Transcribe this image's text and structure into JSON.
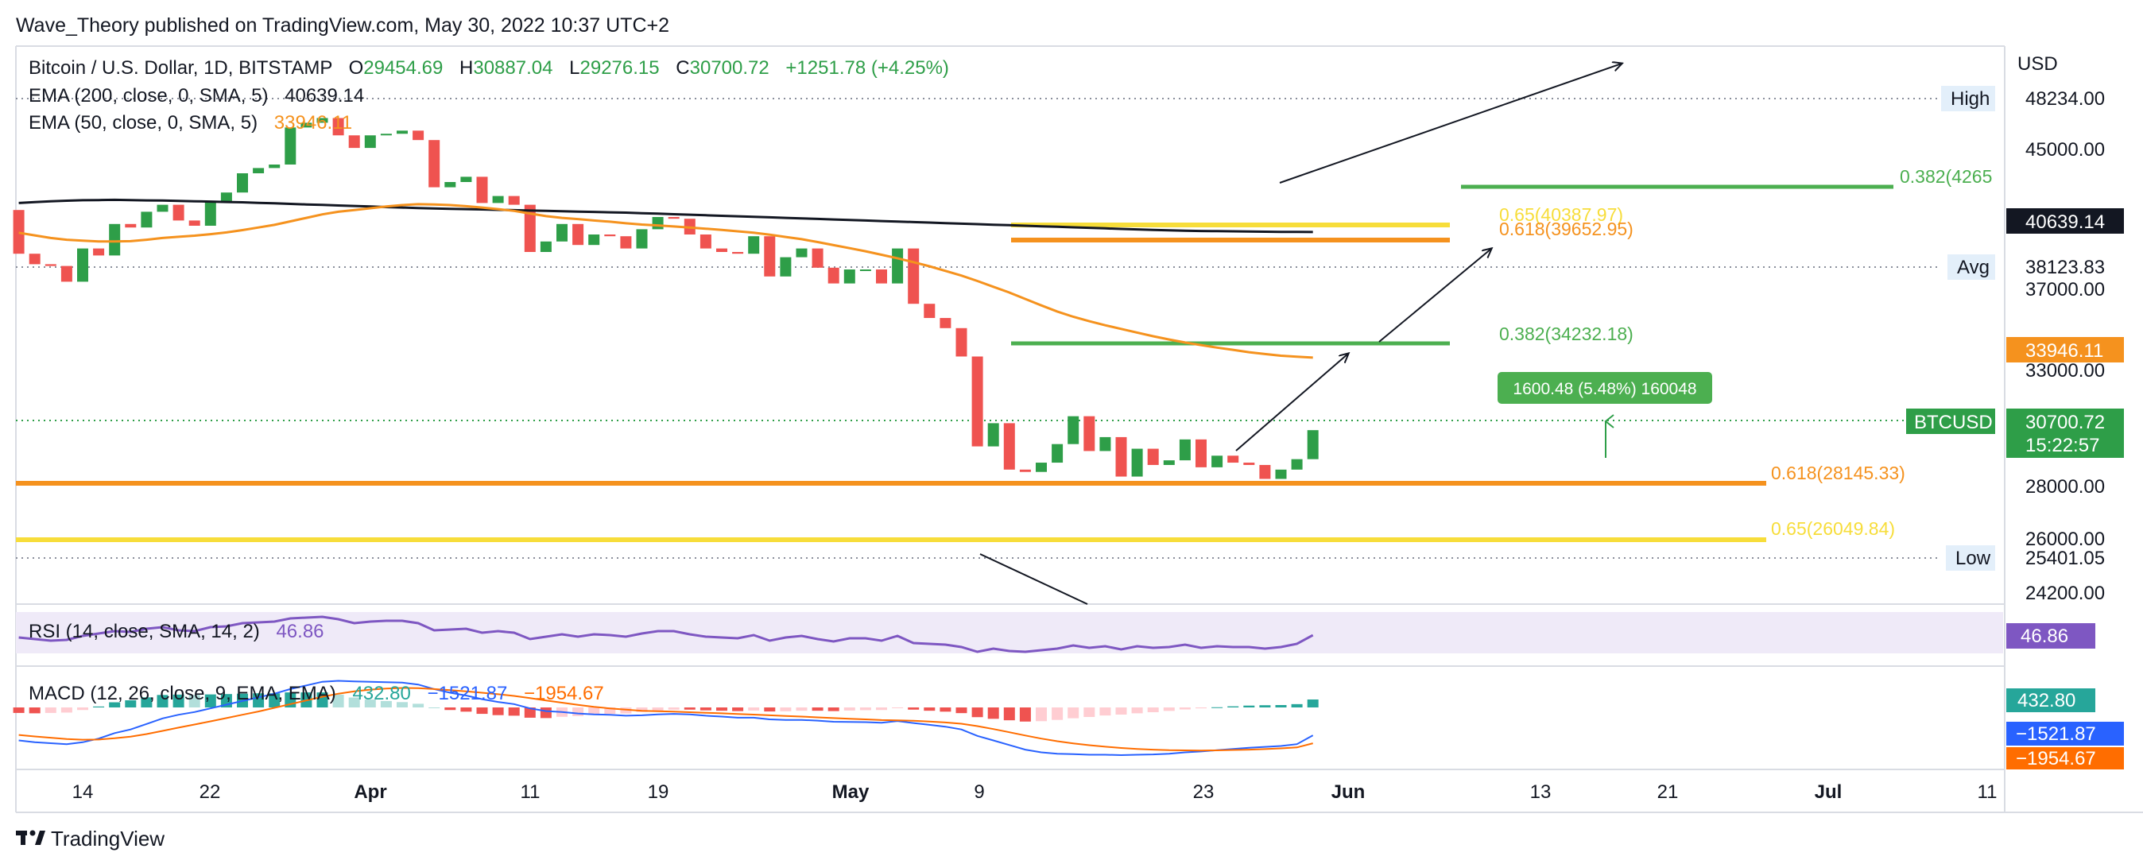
{
  "header": {
    "published": "Wave_Theory published on TradingView.com, May 30, 2022 10:37 UTC+2"
  },
  "footer": {
    "brand": "TradingView"
  },
  "legend": {
    "symbol": "Bitcoin / U.S. Dollar, 1D, BITSTAMP",
    "o_label": "O",
    "o_value": "29454.69",
    "h_label": "H",
    "h_value": "30887.04",
    "l_label": "L",
    "l_value": "29276.15",
    "c_label": "C",
    "c_value": "30700.72",
    "change": "+1251.78 (+4.25%)",
    "ema200_label": "EMA (200, close, 0, SMA, 5)",
    "ema200_value": "40639.14",
    "ema50_label": "EMA (50, close, 0, SMA, 5)",
    "ema50_value": "33946.11",
    "rsi_label": "RSI (14, close, SMA, 14, 2)",
    "rsi_value": "46.86",
    "macd_label": "MACD (12, 26, close, 9, EMA, EMA)",
    "macd_value1": "432.80",
    "macd_value2": "−1521.87",
    "macd_value3": "−1954.67"
  },
  "price_axis": {
    "currency": "USD",
    "ticks": [
      "45000.00",
      "37000.00",
      "33000.00",
      "28000.00",
      "26000.00",
      "24200.00"
    ],
    "high_label": "High",
    "high_value": "48234.00",
    "avg_label": "Avg",
    "avg_value": "38123.83",
    "low_label": "Low",
    "low_value": "25401.05",
    "ema200_badge": "40639.14",
    "ema50_badge": "33946.11",
    "symbol_badge": "BTCUSD",
    "price_badge": "30700.72",
    "countdown_badge": "15:22:57",
    "rsi_badge": "46.86",
    "macd_badge1": "432.80",
    "macd_badge2": "−1521.87",
    "macd_badge3": "−1954.67"
  },
  "time_axis": {
    "labels": [
      "14",
      "22",
      "Apr",
      "11",
      "19",
      "May",
      "9",
      "23",
      "Jun",
      "13",
      "21",
      "Jul",
      "11"
    ]
  },
  "fib_levels": [
    {
      "label": "0.382(4265",
      "color": "#4caf50"
    },
    {
      "label": "0.65(40387.97)",
      "color": "#f7dd3a"
    },
    {
      "label": "0.618(39652.95)",
      "color": "#f5921e"
    },
    {
      "label": "0.382(34232.18)",
      "color": "#4caf50"
    },
    {
      "label": "0.618(28145.33)",
      "color": "#f5921e"
    },
    {
      "label": "0.65(26049.84)",
      "color": "#f7dd3a"
    }
  ],
  "measure_box": {
    "text": "1600.48 (5.48%) 160048"
  },
  "colors": {
    "up": "#26a69a",
    "up_candle": "#2e9e48",
    "down": "#ef5350",
    "ema200": "#131722",
    "ema50": "#f5921e",
    "rsi": "#7e57c2",
    "macd": "#2962ff",
    "signal": "#ff6d00",
    "axis_green": "#2e9e48"
  },
  "chart_data": {
    "type": "candlestick",
    "symbol": "Bitcoin / U.S. Dollar, 1D, BITSTAMP",
    "x": [
      "2022-03-10",
      "2022-03-11",
      "2022-03-12",
      "2022-03-13",
      "2022-03-14",
      "2022-03-15",
      "2022-03-16",
      "2022-03-17",
      "2022-03-18",
      "2022-03-19",
      "2022-03-20",
      "2022-03-21",
      "2022-03-22",
      "2022-03-23",
      "2022-03-24",
      "2022-03-25",
      "2022-03-26",
      "2022-03-27",
      "2022-03-28",
      "2022-03-29",
      "2022-03-30",
      "2022-03-31",
      "2022-04-01",
      "2022-04-02",
      "2022-04-03",
      "2022-04-04",
      "2022-04-05",
      "2022-04-06",
      "2022-04-07",
      "2022-04-08",
      "2022-04-09",
      "2022-04-10",
      "2022-04-11",
      "2022-04-12",
      "2022-04-13",
      "2022-04-14",
      "2022-04-15",
      "2022-04-16",
      "2022-04-17",
      "2022-04-18",
      "2022-04-19",
      "2022-04-20",
      "2022-04-21",
      "2022-04-22",
      "2022-04-23",
      "2022-04-24",
      "2022-04-25",
      "2022-04-26",
      "2022-04-27",
      "2022-04-28",
      "2022-04-29",
      "2022-04-30",
      "2022-05-01",
      "2022-05-02",
      "2022-05-03",
      "2022-05-04",
      "2022-05-05",
      "2022-05-06",
      "2022-05-07",
      "2022-05-08",
      "2022-05-09",
      "2022-05-10",
      "2022-05-11",
      "2022-05-12",
      "2022-05-13",
      "2022-05-14",
      "2022-05-15",
      "2022-05-16",
      "2022-05-17",
      "2022-05-18",
      "2022-05-19",
      "2022-05-20",
      "2022-05-21",
      "2022-05-22",
      "2022-05-23",
      "2022-05-24",
      "2022-05-25",
      "2022-05-26",
      "2022-05-27",
      "2022-05-28",
      "2022-05-29",
      "2022-05-30"
    ],
    "open": [
      41900,
      39400,
      38800,
      38700,
      37800,
      39700,
      39300,
      41100,
      40900,
      41800,
      42200,
      41300,
      41000,
      42400,
      42900,
      44000,
      44300,
      44500,
      46800,
      47100,
      47400,
      46300,
      45500,
      46300,
      46400,
      46600,
      46000,
      43200,
      43500,
      43800,
      42300,
      42700,
      42200,
      39500,
      40100,
      41100,
      39900,
      40500,
      40400,
      39700,
      40800,
      41500,
      41400,
      40500,
      39700,
      39500,
      39400,
      40400,
      38100,
      39200,
      39700,
      38600,
      37700,
      38500,
      38500,
      37700,
      39700,
      36600,
      35900,
      35400,
      34000,
      30000,
      31000,
      29000,
      28900,
      29300,
      30100,
      31300,
      29800,
      30400,
      28700,
      29900,
      29200,
      29400,
      30300,
      29100,
      29600,
      29300,
      29200,
      28600,
      29000,
      29450
    ],
    "high": 48234.0,
    "low": 25401.05,
    "close": [
      39400,
      38800,
      38700,
      37800,
      39700,
      39300,
      41100,
      40900,
      41800,
      42200,
      41300,
      41000,
      42400,
      42900,
      44000,
      44300,
      44500,
      46800,
      47100,
      47400,
      46300,
      45500,
      46300,
      46400,
      46600,
      46000,
      43200,
      43500,
      43800,
      42300,
      42700,
      42200,
      39500,
      40100,
      41100,
      39900,
      40500,
      40400,
      39700,
      40800,
      41500,
      41400,
      40500,
      39700,
      39500,
      39400,
      40400,
      38100,
      39200,
      39700,
      38600,
      37700,
      38500,
      38500,
      37700,
      39700,
      36600,
      35900,
      35400,
      34000,
      30000,
      31000,
      29000,
      28900,
      29300,
      30100,
      31300,
      29800,
      30400,
      28700,
      29900,
      29200,
      29400,
      30300,
      29100,
      29600,
      29300,
      29200,
      28600,
      29000,
      29450,
      30700
    ],
    "ema200": [
      42300,
      42350,
      42400,
      42430,
      42460,
      42470,
      42480,
      42470,
      42450,
      42440,
      42420,
      42400,
      42380,
      42360,
      42340,
      42310,
      42280,
      42250,
      42220,
      42190,
      42160,
      42130,
      42100,
      42070,
      42040,
      42010,
      41990,
      41970,
      41950,
      41930,
      41910,
      41890,
      41870,
      41850,
      41830,
      41810,
      41790,
      41770,
      41750,
      41720,
      41690,
      41660,
      41630,
      41600,
      41570,
      41540,
      41510,
      41480,
      41450,
      41420,
      41390,
      41360,
      41330,
      41300,
      41270,
      41240,
      41210,
      41180,
      41150,
      41120,
      41090,
      41060,
      41030,
      41000,
      40970,
      40940,
      40910,
      40880,
      40850,
      40820,
      40790,
      40760,
      40740,
      40720,
      40700,
      40690,
      40680,
      40670,
      40660,
      40650,
      40645,
      40639
    ],
    "ema50": [
      40600,
      40450,
      40300,
      40200,
      40150,
      40100,
      40100,
      40120,
      40200,
      40300,
      40370,
      40430,
      40520,
      40620,
      40750,
      40900,
      41050,
      41250,
      41450,
      41650,
      41800,
      41900,
      42000,
      42100,
      42180,
      42230,
      42220,
      42180,
      42120,
      42040,
      41950,
      41850,
      41700,
      41550,
      41450,
      41380,
      41300,
      41230,
      41140,
      41070,
      41020,
      40960,
      40900,
      40830,
      40760,
      40680,
      40600,
      40490,
      40360,
      40230,
      40070,
      39890,
      39720,
      39540,
      39340,
      39140,
      38920,
      38680,
      38420,
      38150,
      37840,
      37510,
      37180,
      36840,
      36520,
      36220,
      35960,
      35740,
      35540,
      35360,
      35180,
      35000,
      34840,
      34690,
      34560,
      34440,
      34330,
      34210,
      34120,
      34040,
      33990,
      33946
    ],
    "rsi": [
      44,
      42,
      40,
      41,
      46,
      49,
      52,
      51,
      55,
      57,
      53,
      52,
      57,
      58,
      62,
      63,
      64,
      68,
      69,
      70,
      67,
      62,
      64,
      65,
      65,
      62,
      53,
      54,
      55,
      50,
      52,
      50,
      42,
      45,
      48,
      45,
      48,
      47,
      45,
      49,
      52,
      52,
      48,
      45,
      44,
      43,
      47,
      40,
      44,
      46,
      42,
      39,
      43,
      43,
      40,
      46,
      37,
      36,
      35,
      32,
      26,
      30,
      27,
      26,
      28,
      30,
      34,
      31,
      33,
      29,
      33,
      31,
      32,
      35,
      31,
      33,
      32,
      32,
      30,
      32,
      36,
      46.86
    ],
    "macd": [
      -1800,
      -1900,
      -1950,
      -2000,
      -1900,
      -1700,
      -1400,
      -1200,
      -900,
      -600,
      -400,
      -250,
      -50,
      150,
      350,
      550,
      750,
      1000,
      1200,
      1400,
      1450,
      1420,
      1400,
      1380,
      1350,
      1250,
      1000,
      800,
      650,
      450,
      300,
      180,
      -50,
      -200,
      -250,
      -330,
      -380,
      -400,
      -450,
      -430,
      -380,
      -350,
      -380,
      -450,
      -500,
      -560,
      -560,
      -650,
      -680,
      -680,
      -720,
      -780,
      -790,
      -800,
      -830,
      -740,
      -850,
      -950,
      -1050,
      -1200,
      -1550,
      -1800,
      -2050,
      -2300,
      -2450,
      -2520,
      -2550,
      -2580,
      -2580,
      -2600,
      -2580,
      -2560,
      -2520,
      -2450,
      -2400,
      -2330,
      -2260,
      -2200,
      -2150,
      -2100,
      -2000,
      -1521.87
    ],
    "signal": [
      -1500,
      -1580,
      -1650,
      -1720,
      -1760,
      -1750,
      -1680,
      -1590,
      -1450,
      -1280,
      -1100,
      -930,
      -760,
      -580,
      -400,
      -220,
      -20,
      180,
      380,
      580,
      750,
      880,
      970,
      1030,
      1060,
      1050,
      1000,
      940,
      880,
      800,
      720,
      630,
      510,
      380,
      260,
      140,
      30,
      -50,
      -120,
      -180,
      -210,
      -230,
      -260,
      -290,
      -320,
      -360,
      -390,
      -430,
      -470,
      -500,
      -540,
      -580,
      -620,
      -650,
      -690,
      -700,
      -730,
      -770,
      -820,
      -890,
      -1020,
      -1180,
      -1350,
      -1530,
      -1700,
      -1840,
      -1960,
      -2060,
      -2140,
      -2210,
      -2260,
      -2300,
      -2330,
      -2340,
      -2350,
      -2340,
      -2320,
      -2300,
      -2270,
      -2230,
      -2180,
      -1954.67
    ],
    "hist": [
      -300,
      -320,
      -300,
      -280,
      -140,
      50,
      280,
      390,
      550,
      680,
      700,
      680,
      710,
      730,
      750,
      770,
      770,
      820,
      820,
      820,
      700,
      540,
      430,
      350,
      290,
      200,
      0,
      -140,
      -230,
      -350,
      -420,
      -450,
      -560,
      -580,
      -510,
      -470,
      -410,
      -350,
      -330,
      -250,
      -170,
      -120,
      -120,
      -160,
      -180,
      -200,
      -170,
      -220,
      -210,
      -180,
      -180,
      -200,
      -170,
      -150,
      -140,
      -40,
      -120,
      -180,
      -230,
      -310,
      -530,
      -620,
      -700,
      -770,
      -750,
      -680,
      -590,
      -520,
      -440,
      -390,
      -320,
      -260,
      -190,
      -110,
      -50,
      10,
      60,
      100,
      120,
      130,
      180,
      432.8
    ],
    "volume_lines": [],
    "ylim": [
      23500,
      49500
    ],
    "price_ticks": [
      45000,
      37000,
      33000,
      28000,
      26000,
      24200
    ],
    "avg": 38123.83,
    "last": 30700.72,
    "ema200_last": 40639.14,
    "ema50_last": 33946.11,
    "fib": [
      {
        "label": "0.382(4265",
        "value": 42650
      },
      {
        "label": "0.65(40387.97)",
        "value": 40387.97
      },
      {
        "label": "0.618(39652.95)",
        "value": 39652.95
      },
      {
        "label": "0.382(34232.18)",
        "value": 34232.18
      },
      {
        "label": "0.618(28145.33)",
        "value": 28145.33
      },
      {
        "label": "0.65(26049.84)",
        "value": 26049.84
      }
    ],
    "measure": {
      "from_date": "2022-05-30",
      "from": 29100,
      "to": 30700,
      "text": "1600.48 (5.48%) 160048"
    },
    "rsi_value": 46.86,
    "macd_values": [
      432.8,
      -1521.87,
      -1954.67
    ],
    "grid": false
  }
}
